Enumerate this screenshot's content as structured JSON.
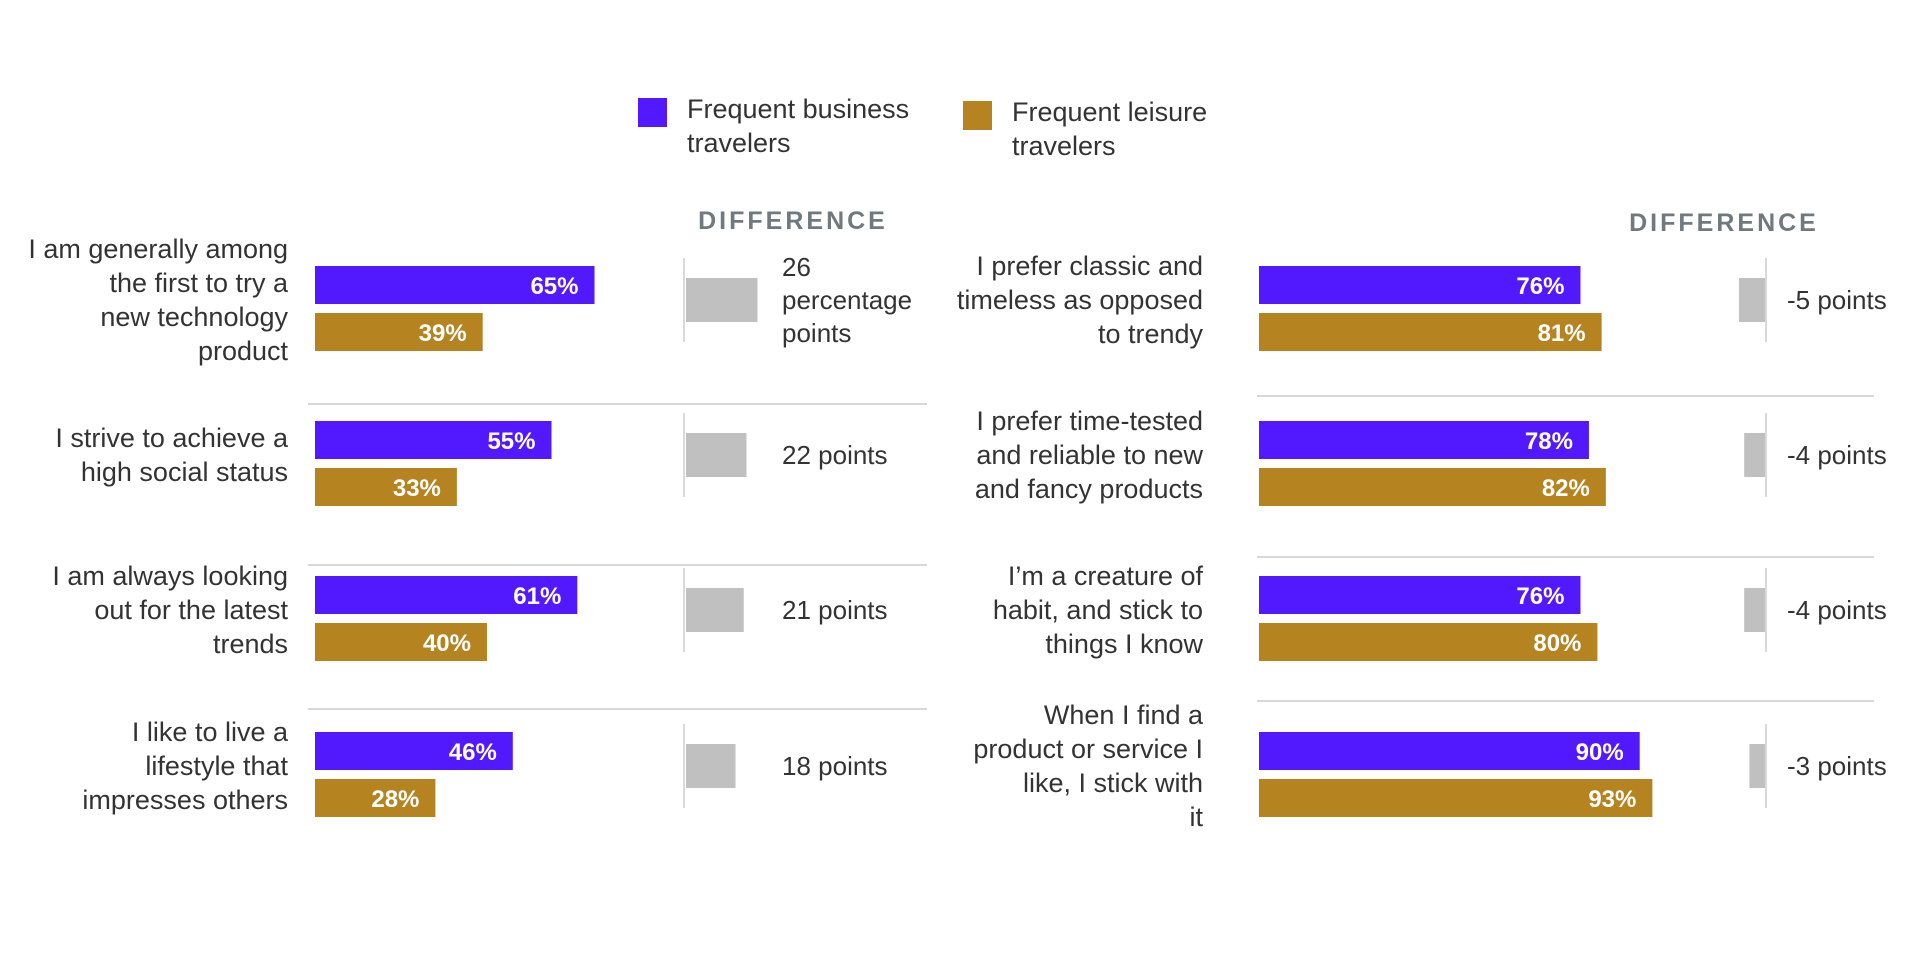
{
  "legend": {
    "business_label": "Frequent business travelers",
    "leisure_label": "Frequent leisure travelers"
  },
  "colors": {
    "business": "#5219FF",
    "leisure": "#B58420",
    "difference": "#C0C0C0",
    "divider": "#CCCCCC",
    "heading": "#707A7E",
    "text": "#333333"
  },
  "chart_data": [
    {
      "type": "bar",
      "orientation": "horizontal",
      "difference_heading": "DIFFERENCE",
      "series": [
        {
          "name": "Frequent business travelers",
          "values": [
            65,
            55,
            61,
            46
          ]
        },
        {
          "name": "Frequent leisure travelers",
          "values": [
            39,
            33,
            40,
            28
          ]
        }
      ],
      "categories": [
        "I am generally among the first to try a new technology product",
        "I strive to achieve a high social status",
        "I am always looking out for the latest trends",
        "I like to live a lifestyle that impresses others"
      ],
      "value_labels": [
        [
          "65%",
          "39%"
        ],
        [
          "55%",
          "33%"
        ],
        [
          "61%",
          "40%"
        ],
        [
          "46%",
          "28%"
        ]
      ],
      "difference_values": [
        26,
        22,
        21,
        18
      ],
      "difference_labels": [
        "26 percentage points",
        "22 points",
        "21 points",
        "18 points"
      ],
      "xlim": [
        0,
        100
      ]
    },
    {
      "type": "bar",
      "orientation": "horizontal",
      "difference_heading": "DIFFERENCE",
      "series": [
        {
          "name": "Frequent business travelers",
          "values": [
            76,
            78,
            76,
            90
          ]
        },
        {
          "name": "Frequent leisure travelers",
          "values": [
            81,
            82,
            80,
            93
          ]
        }
      ],
      "categories": [
        "I prefer classic and timeless as opposed to trendy",
        "I prefer time-tested and reliable to new and fancy products",
        "I’m a creature of habit, and stick to things I know",
        "When I find a product or service I like, I stick with it"
      ],
      "value_labels": [
        [
          "76%",
          "81%"
        ],
        [
          "78%",
          "82%"
        ],
        [
          "76%",
          "80%"
        ],
        [
          "90%",
          "93%"
        ]
      ],
      "difference_values": [
        -5,
        -4,
        -4,
        -3
      ],
      "difference_labels": [
        "-5 points",
        "-4 points",
        "-4 points",
        "-3 points"
      ],
      "xlim": [
        0,
        100
      ]
    }
  ]
}
